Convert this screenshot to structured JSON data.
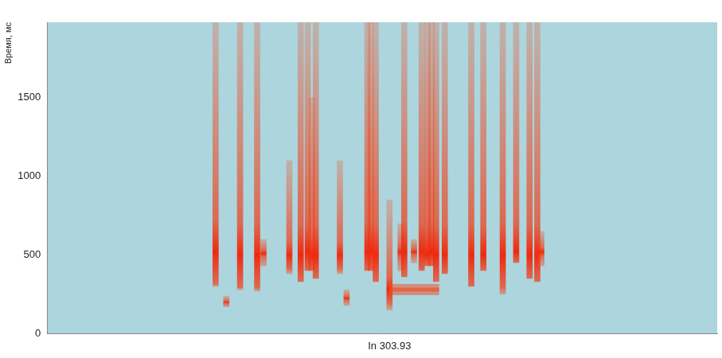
{
  "chart_data": {
    "type": "streaks",
    "y_label": "Время, мс",
    "color": "#ee2a10",
    "xlim": [
      0,
      100
    ],
    "xticks": [
      {
        "value": 52.2,
        "label": "In 303.93"
      }
    ],
    "ylim": [
      0,
      1980
    ],
    "yticks": [
      0,
      500,
      1000,
      1500
    ],
    "grid": false,
    "streaks": [
      {
        "x": 0.3,
        "start": 300,
        "end": 1980,
        "peak": 520
      },
      {
        "x": 3.5,
        "start": 170,
        "end": 240,
        "peak": 200
      },
      {
        "x": 7.6,
        "start": 280,
        "end": 1980,
        "peak": 500
      },
      {
        "x": 12.7,
        "start": 270,
        "end": 1980,
        "peak": 500
      },
      {
        "x": 14.6,
        "start": 430,
        "end": 600,
        "peak": 510
      },
      {
        "x": 22.3,
        "start": 380,
        "end": 1100,
        "peak": 500
      },
      {
        "x": 25.7,
        "start": 330,
        "end": 1980,
        "peak": 500
      },
      {
        "x": 27.8,
        "start": 400,
        "end": 1980,
        "peak": 520
      },
      {
        "x": 29.0,
        "start": 400,
        "end": 1500,
        "peak": 500
      },
      {
        "x": 30.2,
        "start": 350,
        "end": 1980,
        "peak": 500
      },
      {
        "x": 37.4,
        "start": 380,
        "end": 1100,
        "peak": 500
      },
      {
        "x": 39.4,
        "start": 180,
        "end": 280,
        "peak": 225
      },
      {
        "x": 45.6,
        "start": 400,
        "end": 1980,
        "peak": 520
      },
      {
        "x": 46.6,
        "start": 400,
        "end": 1980,
        "peak": 520
      },
      {
        "x": 48.1,
        "start": 330,
        "end": 1980,
        "peak": 500
      },
      {
        "x": 52.2,
        "start": 150,
        "end": 850,
        "peak": 280,
        "tail": {
          "y": 280,
          "x_end": 67
        }
      },
      {
        "x": 55.5,
        "start": 400,
        "end": 700,
        "peak": 520
      },
      {
        "x": 56.6,
        "start": 360,
        "end": 1980,
        "peak": 520
      },
      {
        "x": 59.5,
        "start": 450,
        "end": 600,
        "peak": 520
      },
      {
        "x": 61.8,
        "start": 400,
        "end": 1980,
        "peak": 520
      },
      {
        "x": 63.5,
        "start": 430,
        "end": 1980,
        "peak": 500
      },
      {
        "x": 64.7,
        "start": 430,
        "end": 1980,
        "peak": 520
      },
      {
        "x": 66.1,
        "start": 330,
        "end": 1980,
        "peak": 500
      },
      {
        "x": 68.7,
        "start": 380,
        "end": 1980,
        "peak": 500
      },
      {
        "x": 76.6,
        "start": 300,
        "end": 1980,
        "peak": 500
      },
      {
        "x": 80.2,
        "start": 400,
        "end": 1980,
        "peak": 500
      },
      {
        "x": 86.0,
        "start": 250,
        "end": 1980,
        "peak": 500
      },
      {
        "x": 90.0,
        "start": 450,
        "end": 1980,
        "peak": 520
      },
      {
        "x": 94.0,
        "start": 350,
        "end": 1980,
        "peak": 500
      },
      {
        "x": 96.3,
        "start": 330,
        "end": 1980,
        "peak": 500
      },
      {
        "x": 97.5,
        "start": 430,
        "end": 650,
        "peak": 520
      }
    ]
  }
}
